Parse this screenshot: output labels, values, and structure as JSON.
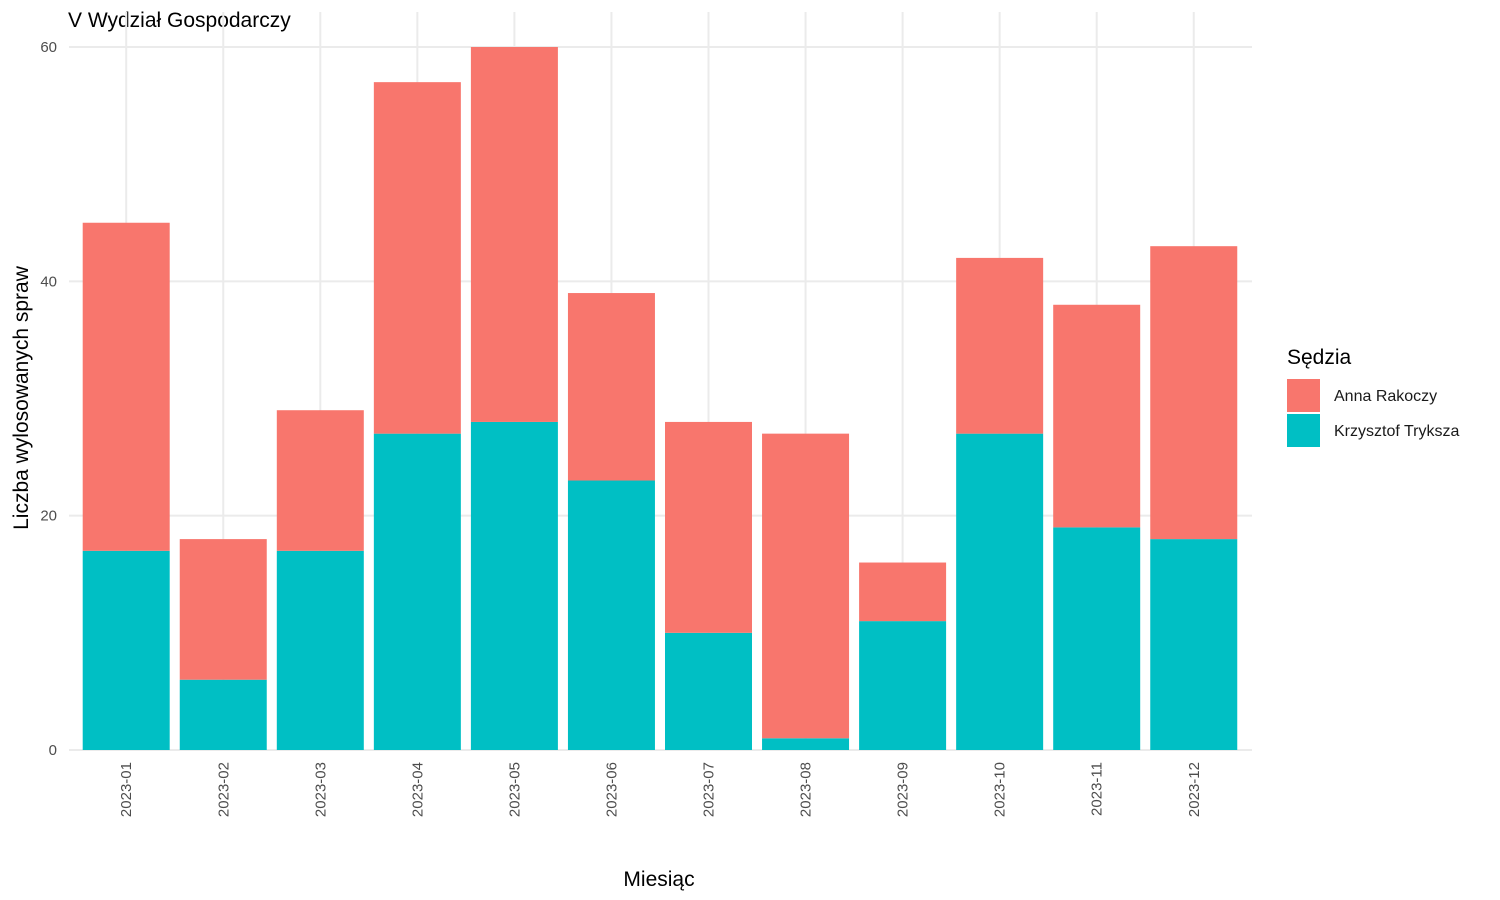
{
  "chart_data": {
    "type": "bar",
    "stacked": true,
    "title": "V Wydział Gospodarczy",
    "xlabel": "Miesiąc",
    "ylabel": "Liczba wylosowanych spraw",
    "ylim": [
      0,
      61
    ],
    "yticks": [
      0,
      20,
      40,
      60
    ],
    "grid": true,
    "legend_position": "right",
    "legend_title": "Sędzia",
    "categories": [
      "2023-01",
      "2023-02",
      "2023-03",
      "2023-04",
      "2023-05",
      "2023-06",
      "2023-07",
      "2023-08",
      "2023-09",
      "2023-10",
      "2023-11",
      "2023-12"
    ],
    "series": [
      {
        "name": "Krzysztof Tryksza",
        "color": "#00BFC4",
        "values": [
          17,
          6,
          17,
          27,
          28,
          23,
          10,
          1,
          11,
          27,
          19,
          18
        ]
      },
      {
        "name": "Anna Rakoczy",
        "color": "#F8766D",
        "values": [
          28,
          12,
          12,
          30,
          32,
          16,
          18,
          26,
          5,
          15,
          19,
          25
        ]
      }
    ],
    "legend_order": [
      "Anna Rakoczy",
      "Krzysztof Tryksza"
    ]
  }
}
